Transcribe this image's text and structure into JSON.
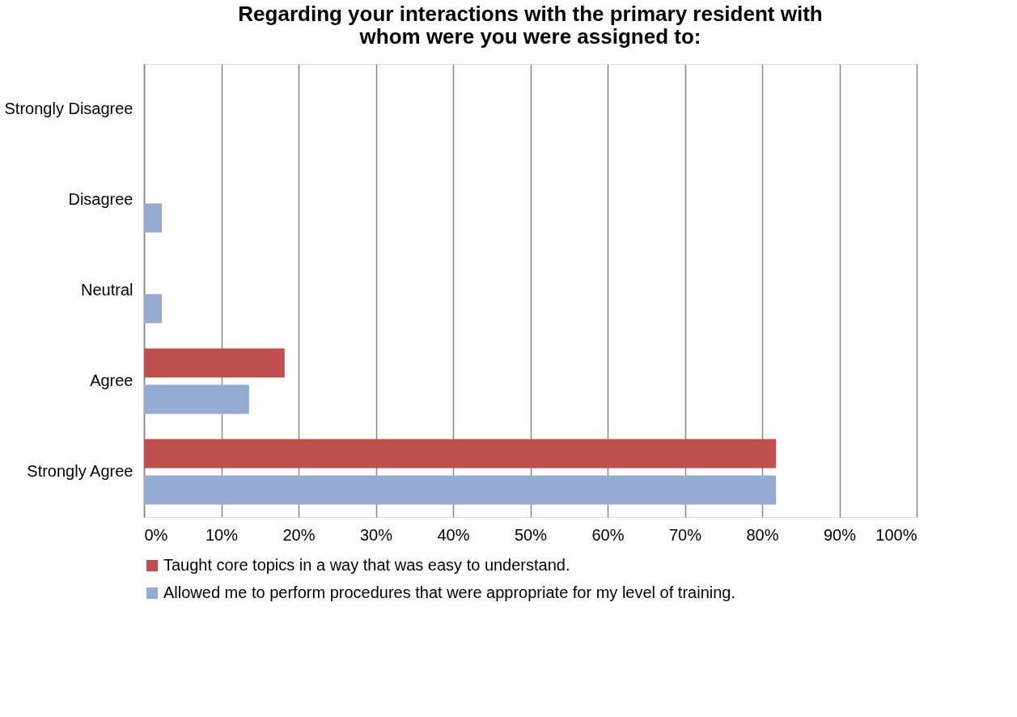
{
  "chart_data": {
    "type": "bar",
    "orientation": "horizontal",
    "title": "Regarding your interactions with the primary resident with whom were you were assigned to:",
    "categories": [
      "Strongly Disagree",
      "Disagree",
      "Neutral",
      "Agree",
      "Strongly Agree"
    ],
    "series": [
      {
        "name": "Taught core topics in a way that was easy to understand.",
        "color": "#c0504d",
        "values": [
          0,
          0,
          0,
          18.2,
          81.8
        ]
      },
      {
        "name": "Allowed me to perform procedures that were appropriate for my level of training.",
        "color": "#95abd3",
        "values": [
          0,
          2.3,
          2.3,
          13.6,
          81.8
        ]
      }
    ],
    "xlim": [
      0,
      100
    ],
    "xticks": [
      {
        "value": 0,
        "label": "0%"
      },
      {
        "value": 10,
        "label": "10%"
      },
      {
        "value": 20,
        "label": "20%"
      },
      {
        "value": 30,
        "label": "30%"
      },
      {
        "value": 40,
        "label": "40%"
      },
      {
        "value": 50,
        "label": "50%"
      },
      {
        "value": 60,
        "label": "60%"
      },
      {
        "value": 70,
        "label": "70%"
      },
      {
        "value": 80,
        "label": "80%"
      },
      {
        "value": 90,
        "label": "90%"
      },
      {
        "value": 100,
        "label": "100%"
      }
    ],
    "grid": "x",
    "legend": "bottom"
  }
}
